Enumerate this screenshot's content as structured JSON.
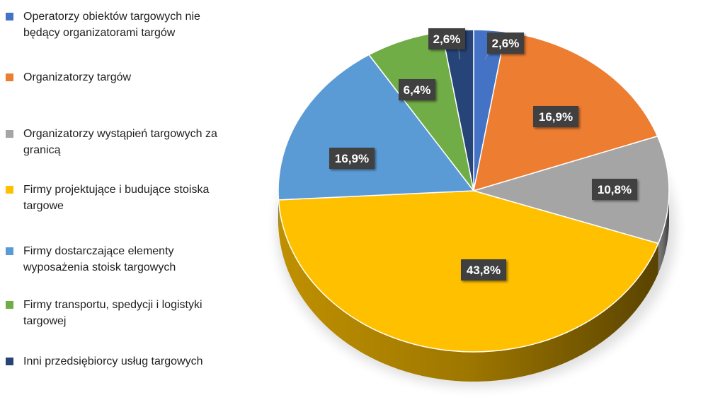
{
  "chart_data": {
    "type": "pie",
    "title": "",
    "legend_position": "left",
    "slices": [
      {
        "label": "Operatorzy obiektów targowych nie będący organizatorami targów",
        "value": 2.6,
        "display": "2,6%",
        "color": "#4472C4"
      },
      {
        "label": "Organizatorzy targów",
        "value": 16.9,
        "display": "16,9%",
        "color": "#ED7D31"
      },
      {
        "label": "Organizatorzy wystąpień targowych za granicą",
        "value": 10.8,
        "display": "10,8%",
        "color": "#A5A5A5"
      },
      {
        "label": "Firmy projektujące i budujące stoiska targowe",
        "value": 43.8,
        "display": "43,8%",
        "color": "#FFC000"
      },
      {
        "label": "Firmy dostarczające elementy wyposażenia stoisk targowych",
        "value": 16.9,
        "display": "16,9%",
        "color": "#5B9BD5"
      },
      {
        "label": "Firmy transportu, spedycji i logistyki targowej",
        "value": 6.4,
        "display": "6,4%",
        "color": "#70AD47"
      },
      {
        "label": "Inni przedsiębiorcy usług targowych",
        "value": 2.6,
        "display": "2,6%",
        "color": "#264478"
      }
    ]
  }
}
